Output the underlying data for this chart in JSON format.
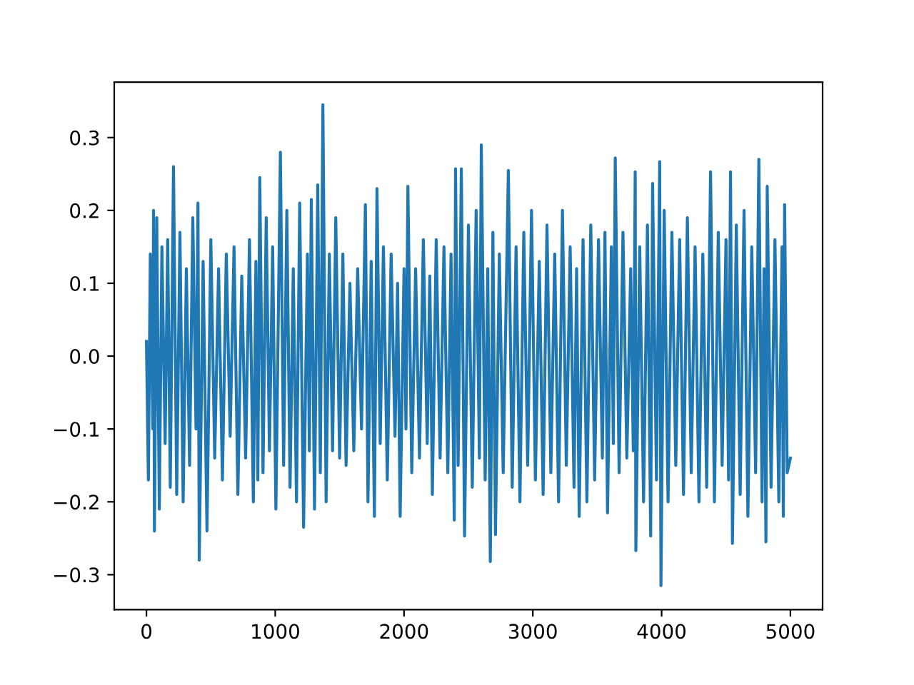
{
  "chart_data": {
    "type": "line",
    "x": [
      0,
      15,
      30,
      50,
      55,
      62,
      80,
      100,
      120,
      145,
      165,
      185,
      210,
      235,
      260,
      285,
      310,
      335,
      360,
      385,
      400,
      410,
      440,
      470,
      500,
      530,
      560,
      590,
      620,
      650,
      680,
      710,
      740,
      770,
      800,
      830,
      850,
      865,
      880,
      905,
      930,
      955,
      980,
      1005,
      1040,
      1065,
      1090,
      1115,
      1140,
      1165,
      1190,
      1220,
      1250,
      1265,
      1280,
      1305,
      1330,
      1350,
      1370,
      1395,
      1420,
      1445,
      1470,
      1500,
      1525,
      1550,
      1580,
      1610,
      1640,
      1670,
      1700,
      1720,
      1745,
      1770,
      1790,
      1815,
      1840,
      1870,
      1900,
      1930,
      1950,
      1970,
      2000,
      2015,
      2030,
      2060,
      2090,
      2120,
      2150,
      2180,
      2200,
      2220,
      2250,
      2280,
      2310,
      2340,
      2365,
      2390,
      2400,
      2420,
      2445,
      2470,
      2500,
      2530,
      2560,
      2585,
      2600,
      2630,
      2650,
      2670,
      2690,
      2710,
      2740,
      2770,
      2810,
      2840,
      2870,
      2900,
      2930,
      2960,
      2990,
      3020,
      3050,
      3080,
      3110,
      3140,
      3170,
      3200,
      3230,
      3260,
      3290,
      3320,
      3340,
      3360,
      3390,
      3420,
      3450,
      3480,
      3510,
      3540,
      3560,
      3580,
      3610,
      3625,
      3640,
      3670,
      3700,
      3730,
      3760,
      3780,
      3795,
      3800,
      3830,
      3860,
      3890,
      3915,
      3930,
      3960,
      3985,
      3995,
      4020,
      4050,
      4080,
      4110,
      4140,
      4170,
      4200,
      4230,
      4260,
      4290,
      4320,
      4350,
      4380,
      4410,
      4440,
      4470,
      4500,
      4520,
      4535,
      4550,
      4580,
      4610,
      4640,
      4670,
      4700,
      4730,
      4755,
      4780,
      4795,
      4810,
      4820,
      4850,
      4880,
      4910,
      4935,
      4945,
      4955,
      4975,
      5000
    ],
    "series": [
      {
        "color": "#1f77b4",
        "values": [
          0.02,
          -0.17,
          0.14,
          -0.1,
          0.2,
          -0.24,
          0.19,
          -0.21,
          0.15,
          -0.12,
          0.16,
          -0.18,
          0.26,
          -0.19,
          0.17,
          -0.2,
          0.12,
          -0.15,
          0.19,
          -0.1,
          0.21,
          -0.28,
          0.13,
          -0.24,
          0.16,
          -0.14,
          0.12,
          -0.17,
          0.14,
          -0.11,
          0.15,
          -0.19,
          0.11,
          -0.14,
          0.16,
          -0.2,
          0.13,
          -0.17,
          0.245,
          -0.16,
          0.19,
          -0.13,
          0.15,
          -0.21,
          0.28,
          -0.15,
          0.2,
          -0.18,
          0.12,
          -0.2,
          0.21,
          -0.235,
          0.14,
          -0.13,
          0.215,
          -0.21,
          0.235,
          -0.16,
          0.345,
          -0.2,
          0.14,
          -0.13,
          0.19,
          -0.14,
          0.14,
          -0.15,
          0.1,
          -0.13,
          0.12,
          -0.1,
          0.208,
          -0.2,
          0.13,
          -0.22,
          0.23,
          -0.12,
          0.15,
          -0.17,
          0.14,
          -0.11,
          0.1,
          -0.22,
          0.12,
          -0.1,
          0.233,
          -0.16,
          0.12,
          -0.14,
          0.16,
          -0.12,
          0.11,
          -0.19,
          0.16,
          -0.14,
          0.15,
          -0.16,
          0.14,
          -0.225,
          0.257,
          -0.15,
          0.257,
          -0.247,
          0.18,
          -0.18,
          0.2,
          -0.14,
          0.29,
          -0.17,
          0.12,
          -0.282,
          0.17,
          -0.245,
          0.14,
          -0.16,
          0.255,
          -0.18,
          0.15,
          -0.2,
          0.17,
          -0.15,
          0.2,
          -0.17,
          0.13,
          -0.19,
          0.18,
          -0.16,
          0.14,
          -0.2,
          0.2,
          -0.15,
          0.15,
          -0.18,
          0.12,
          -0.22,
          0.16,
          -0.2,
          0.18,
          -0.17,
          0.16,
          -0.14,
          0.17,
          -0.215,
          0.15,
          -0.12,
          0.272,
          -0.16,
          0.17,
          -0.14,
          0.12,
          -0.13,
          0.253,
          -0.267,
          0.15,
          -0.2,
          0.18,
          -0.247,
          0.237,
          -0.17,
          0.267,
          -0.315,
          0.2,
          -0.2,
          0.17,
          -0.15,
          0.16,
          -0.19,
          0.19,
          -0.16,
          0.15,
          -0.2,
          0.14,
          -0.18,
          0.253,
          -0.2,
          0.17,
          -0.15,
          0.16,
          -0.17,
          0.253,
          -0.257,
          0.18,
          -0.19,
          0.2,
          -0.22,
          0.15,
          -0.16,
          0.27,
          -0.2,
          0.12,
          -0.255,
          0.233,
          -0.18,
          0.16,
          -0.2,
          0.15,
          -0.22,
          0.208,
          -0.16,
          -0.14
        ]
      }
    ],
    "xlim": [
      -250,
      5250
    ],
    "ylim": [
      -0.348,
      0.376
    ],
    "xticks": [
      0,
      1000,
      2000,
      3000,
      4000,
      5000
    ],
    "yticks": [
      {
        "value": -0.3,
        "label": "−0.3"
      },
      {
        "value": -0.2,
        "label": "−0.2"
      },
      {
        "value": -0.1,
        "label": "−0.1"
      },
      {
        "value": 0,
        "label": "0.0"
      },
      {
        "value": 0.1,
        "label": "0.1"
      },
      {
        "value": 0.2,
        "label": "0.2"
      },
      {
        "value": 0.3,
        "label": "0.3"
      }
    ]
  }
}
